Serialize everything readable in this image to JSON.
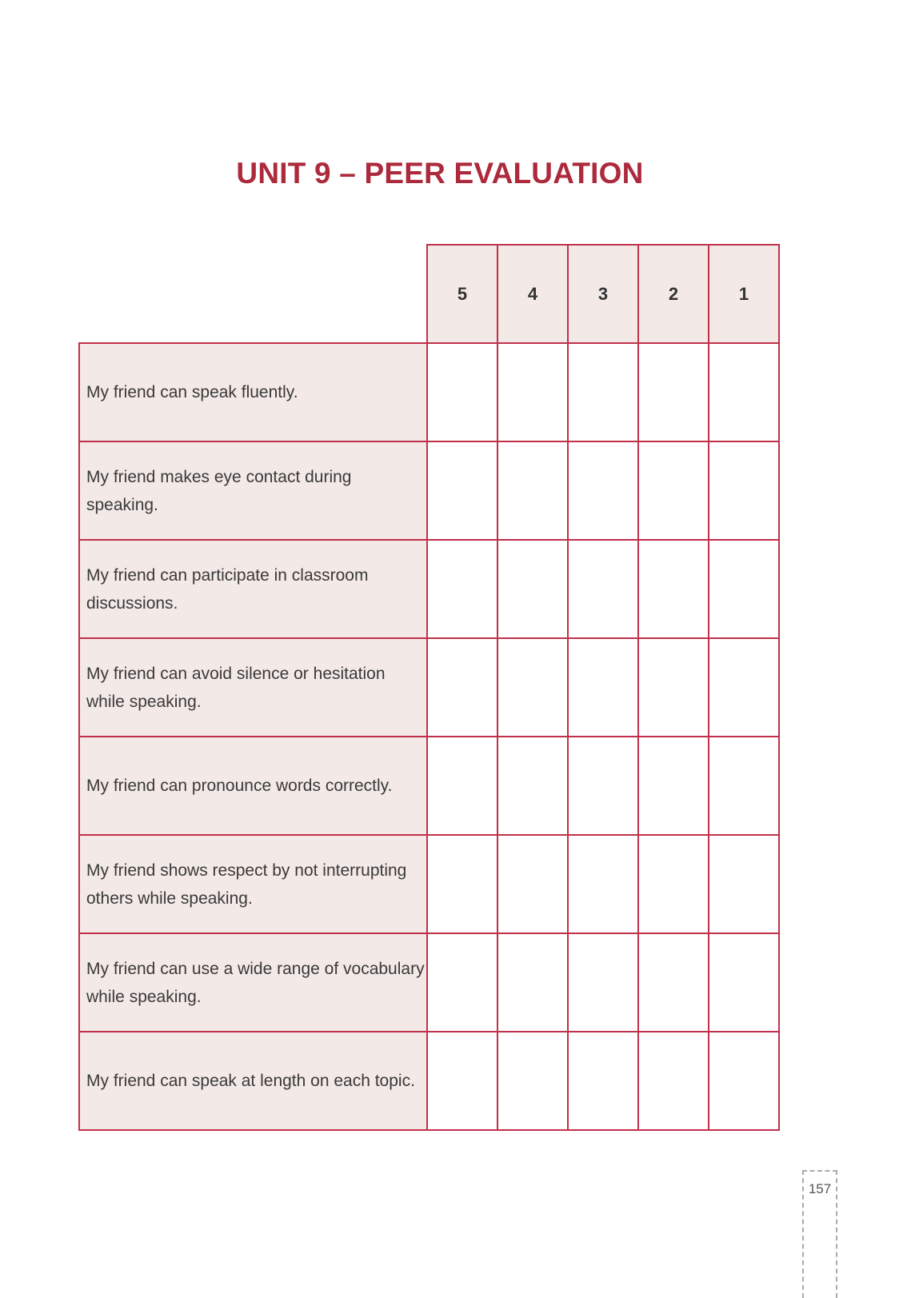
{
  "title": "UNIT 9 – PEER EVALUATION",
  "scale": [
    "5",
    "4",
    "3",
    "2",
    "1"
  ],
  "criteria": [
    "My friend can speak fluently.",
    "My friend makes eye contact during speaking.",
    "My friend can participate in classroom discussions.",
    "My friend can avoid silence or hesitation while speaking.",
    "My friend can pronounce words correctly.",
    "My friend shows respect by not interrupting others while speaking.",
    "My friend can use a wide range of vocabulary while speaking.",
    "My friend can speak at length on each topic."
  ],
  "page_number": "157",
  "colors": {
    "accent": "#ad2a3c",
    "border": "#c0304a",
    "cell_fill": "#f3e9e6"
  }
}
